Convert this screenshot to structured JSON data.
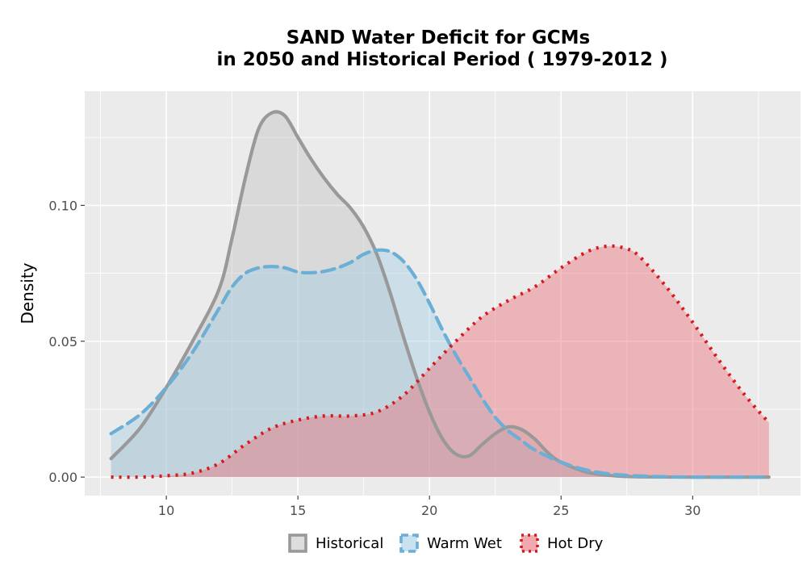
{
  "chart_data": {
    "type": "area",
    "title_lines": [
      "SAND  Water Deficit for GCMs",
      "in 2050 and Historical Period ( 1979-2012 )"
    ],
    "xlabel": "",
    "ylabel": "Density",
    "xlim": [
      6.9,
      34.1
    ],
    "ylim": [
      -0.0068,
      0.142
    ],
    "x_ticks": [
      10,
      15,
      20,
      25,
      30
    ],
    "x_tick_labels": [
      "10",
      "15",
      "20",
      "25",
      "30"
    ],
    "y_ticks": [
      0.0,
      0.05,
      0.1
    ],
    "y_tick_labels": [
      "0.00",
      "0.05",
      "0.10"
    ],
    "grid": true,
    "legend_position": "bottom",
    "series": [
      {
        "name": "Historical",
        "color": "#999999",
        "fill": "#bebebe",
        "fill_opacity": 0.38,
        "line_style": "solid",
        "x": [
          7.9,
          9,
          10,
          11,
          12,
          12.5,
          13,
          13.5,
          14,
          14.5,
          15,
          15.5,
          16,
          16.5,
          17,
          17.5,
          18,
          18.5,
          19,
          19.5,
          20,
          20.5,
          21,
          21.5,
          22,
          22.5,
          23,
          23.5,
          24,
          24.5,
          25,
          26,
          27,
          28,
          30,
          32,
          32.9
        ],
        "y": [
          0.0068,
          0.018,
          0.033,
          0.05,
          0.069,
          0.088,
          0.11,
          0.128,
          0.134,
          0.133,
          0.125,
          0.117,
          0.11,
          0.104,
          0.099,
          0.092,
          0.082,
          0.068,
          0.052,
          0.037,
          0.024,
          0.014,
          0.0085,
          0.0078,
          0.012,
          0.016,
          0.0185,
          0.0175,
          0.014,
          0.009,
          0.0055,
          0.0018,
          0.0005,
          0.0001,
          0.0,
          0.0,
          0.0
        ]
      },
      {
        "name": "Warm Wet",
        "color": "#6baed6",
        "fill": "#9ecae1",
        "fill_opacity": 0.4,
        "line_style": "dashed",
        "x": [
          7.9,
          9,
          10,
          11,
          12,
          12.5,
          13,
          13.5,
          14,
          14.5,
          15,
          15.5,
          16,
          16.5,
          17,
          17.5,
          18,
          18.5,
          19,
          19.5,
          20,
          20.5,
          21,
          21.5,
          22,
          22.5,
          23,
          23.5,
          24,
          25,
          26,
          27,
          28,
          29,
          30,
          32,
          32.9
        ],
        "y": [
          0.016,
          0.023,
          0.033,
          0.046,
          0.062,
          0.07,
          0.075,
          0.077,
          0.0775,
          0.077,
          0.0755,
          0.0752,
          0.0757,
          0.077,
          0.079,
          0.082,
          0.0835,
          0.083,
          0.0795,
          0.073,
          0.064,
          0.054,
          0.045,
          0.037,
          0.029,
          0.022,
          0.017,
          0.0135,
          0.01,
          0.0055,
          0.0025,
          0.001,
          0.0004,
          0.0001,
          0.0,
          0.0,
          0.0
        ]
      },
      {
        "name": "Hot Dry",
        "color": "#d7191c",
        "fill": "#e8707a",
        "fill_opacity": 0.45,
        "line_style": "dotted",
        "x": [
          7.9,
          9,
          10,
          11,
          12,
          13,
          14,
          15,
          16,
          17,
          18,
          19,
          20,
          21,
          22,
          23,
          24,
          25,
          26,
          26.8,
          27.5,
          28,
          29,
          30,
          31,
          32,
          32.9
        ],
        "y": [
          0.0,
          0.0,
          0.0005,
          0.0015,
          0.005,
          0.012,
          0.018,
          0.021,
          0.0225,
          0.0225,
          0.024,
          0.03,
          0.04,
          0.05,
          0.059,
          0.065,
          0.07,
          0.077,
          0.083,
          0.085,
          0.084,
          0.081,
          0.07,
          0.057,
          0.043,
          0.03,
          0.02
        ]
      }
    ]
  }
}
